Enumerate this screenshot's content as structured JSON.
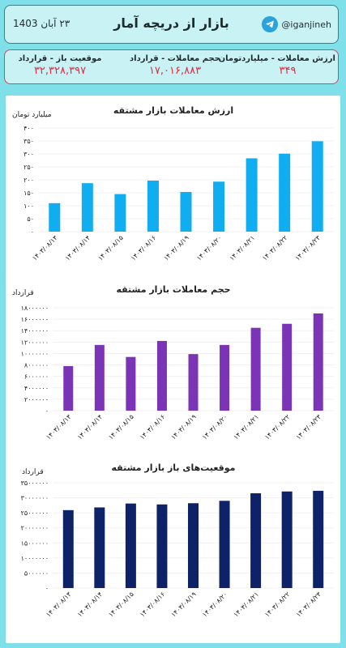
{
  "header": {
    "handle": "@iganjineh",
    "title": "بازار از دریچه آمار",
    "date": "۲۳ آبان 1403",
    "icon": "telegram-icon"
  },
  "stats": {
    "open_positions_label": "موقعیت باز - قرارداد",
    "open_positions_value": "۳۲,۳۲۸,۳۹۷",
    "volume_label": "حجم معاملات - قرارداد",
    "volume_value": "۱۷,۰۱۶,۸۸۳",
    "value_label": "ارزش معاملات - میلیاردتومان",
    "value_value": "۳۴۹"
  },
  "colors": {
    "background": "#7fe0ea",
    "chart1": "#10aef0",
    "chart2": "#7b34b5",
    "chart3": "#0e2367",
    "stat_value": "#e5283f"
  },
  "chart_data": [
    {
      "type": "bar",
      "title": "ارزش معاملات بازار مشتقه",
      "ylabel": "میلیارد تومان",
      "categories": [
        "۱۴۰۳/۰۸/۱۳",
        "۱۴۰۳/۰۸/۱۴",
        "۱۴۰۳/۰۸/۱۵",
        "۱۴۰۳/۰۸/۱۶",
        "۱۴۰۳/۰۸/۱۹",
        "۱۴۰۳/۰۸/۲۰",
        "۱۴۰۳/۰۸/۲۱",
        "۱۴۰۳/۰۸/۲۲",
        "۱۴۰۳/۰۸/۲۳"
      ],
      "values": [
        110,
        187,
        145,
        197,
        153,
        193,
        283,
        301,
        349
      ],
      "ylim": [
        0,
        400
      ],
      "yticks": [
        0,
        50,
        100,
        150,
        200,
        250,
        300,
        350,
        400
      ],
      "ytick_labels": [
        "۰",
        "۵۰",
        "۱۰۰",
        "۱۵۰",
        "۲۰۰",
        "۲۵۰",
        "۳۰۰",
        "۳۵۰",
        "۴۰۰"
      ],
      "grid": true,
      "legend": false
    },
    {
      "type": "bar",
      "title": "حجم معاملات بازار مشتقه",
      "ylabel": "قرارداد",
      "categories": [
        "۱۴۰۳/۰۸/۱۳",
        "۱۴۰۳/۰۸/۱۴",
        "۱۴۰۳/۰۸/۱۵",
        "۱۴۰۳/۰۸/۱۶",
        "۱۴۰۳/۰۸/۱۹",
        "۱۴۰۳/۰۸/۲۰",
        "۱۴۰۳/۰۸/۲۱",
        "۱۴۰۳/۰۸/۲۲",
        "۱۴۰۳/۰۸/۲۳"
      ],
      "values": [
        7800000,
        11500000,
        9400000,
        12200000,
        9900000,
        11500000,
        14500000,
        15200000,
        17016883
      ],
      "ylim": [
        0,
        18000000
      ],
      "yticks": [
        0,
        2000000,
        4000000,
        6000000,
        8000000,
        10000000,
        12000000,
        14000000,
        16000000,
        18000000
      ],
      "ytick_labels": [
        "۰",
        "۲۰۰۰۰۰۰",
        "۴۰۰۰۰۰۰",
        "۶۰۰۰۰۰۰",
        "۸۰۰۰۰۰۰",
        "۱۰۰۰۰۰۰۰",
        "۱۲۰۰۰۰۰۰",
        "۱۴۰۰۰۰۰۰",
        "۱۶۰۰۰۰۰۰",
        "۱۸۰۰۰۰۰۰"
      ],
      "grid": true,
      "legend": false
    },
    {
      "type": "bar",
      "title": "موقعیت‌های باز بازار مشتقه",
      "ylabel": "قرارداد",
      "categories": [
        "۱۴۰۳/۰۸/۱۳",
        "۱۴۰۳/۰۸/۱۴",
        "۱۴۰۳/۰۸/۱۵",
        "۱۴۰۳/۰۸/۱۶",
        "۱۴۰۳/۰۸/۱۹",
        "۱۴۰۳/۰۸/۲۰",
        "۱۴۰۳/۰۸/۲۱",
        "۱۴۰۳/۰۸/۲۲",
        "۱۴۰۳/۰۸/۲۳"
      ],
      "values": [
        25900000,
        26800000,
        28100000,
        27800000,
        28200000,
        29000000,
        31500000,
        32100000,
        32328397
      ],
      "ylim": [
        0,
        35000000
      ],
      "yticks": [
        0,
        5000000,
        10000000,
        15000000,
        20000000,
        25000000,
        30000000,
        35000000
      ],
      "ytick_labels": [
        "۰",
        "۵۰۰۰۰۰۰",
        "۱۰۰۰۰۰۰۰",
        "۱۵۰۰۰۰۰۰",
        "۲۰۰۰۰۰۰۰",
        "۲۵۰۰۰۰۰۰",
        "۳۰۰۰۰۰۰۰",
        "۳۵۰۰۰۰۰۰"
      ],
      "grid": true,
      "legend": false
    }
  ]
}
